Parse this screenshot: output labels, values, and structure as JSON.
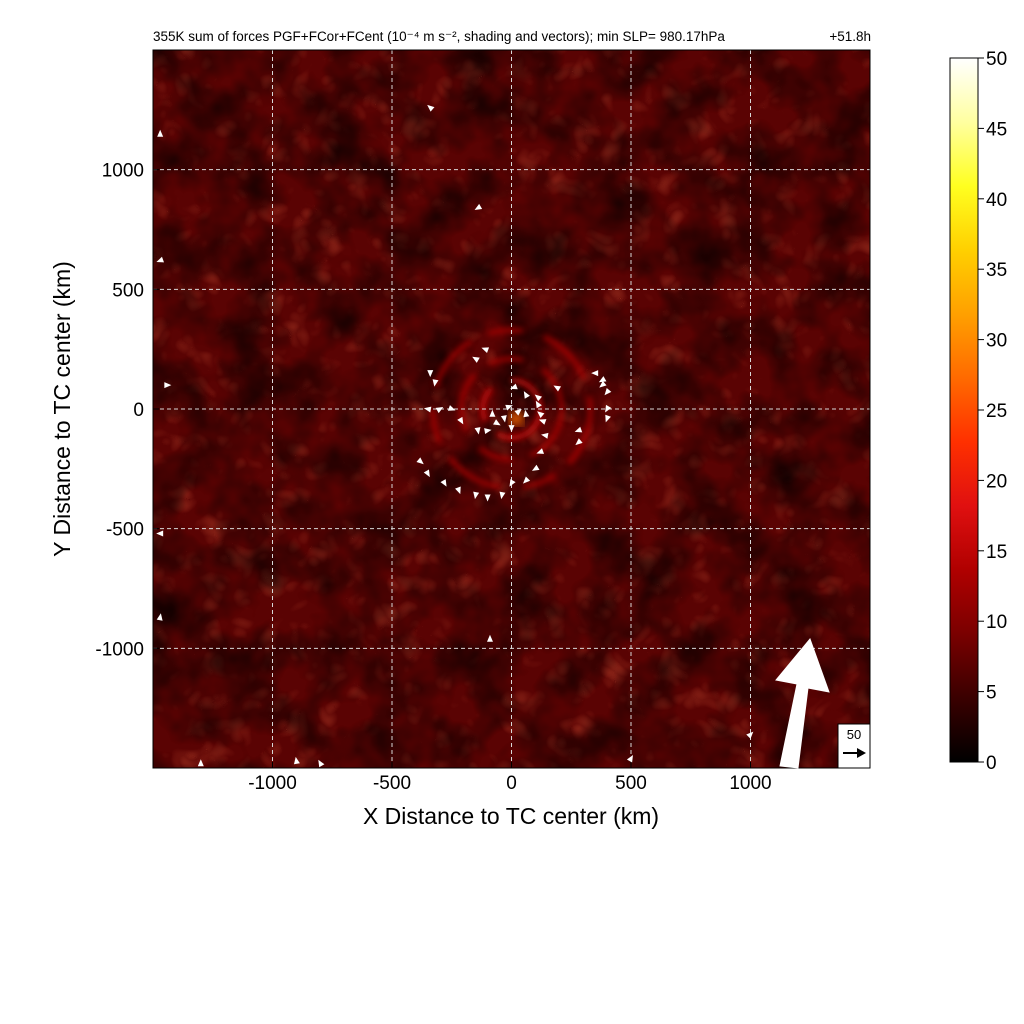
{
  "chart_data": {
    "type": "heatmap",
    "title": "355K sum of forces PGF+FCor+FCent (10⁻⁴ m s⁻², shading and vectors); min SLP= 980.17hPa",
    "time_label": "+51.8h",
    "xlabel": "X Distance to TC center (km)",
    "ylabel": "Y Distance to TC center (km)",
    "xlim": [
      -1500,
      1500
    ],
    "ylim": [
      -1500,
      1500
    ],
    "x_ticks": [
      -1000,
      -500,
      0,
      500,
      1000
    ],
    "y_ticks": [
      -1000,
      -500,
      0,
      500,
      1000
    ],
    "grid": true,
    "colorbar": {
      "range": [
        0,
        50
      ],
      "ticks": [
        0,
        5,
        10,
        15,
        20,
        25,
        30,
        35,
        40,
        45,
        50
      ],
      "colors": [
        "#000000",
        "#3a0000",
        "#7a0000",
        "#b00000",
        "#e01010",
        "#ff3000",
        "#ff6a00",
        "#ffa000",
        "#ffd000",
        "#ffff20",
        "#ffffa0",
        "#ffffff"
      ]
    },
    "reference_vector": {
      "label": "50",
      "magnitude": 50
    },
    "storm_motion_arrow": {
      "direction": "north-north-east"
    },
    "rings": [
      {
        "radius_km": 120,
        "intensity": 16
      },
      {
        "radius_km": 210,
        "intensity": 13
      },
      {
        "radius_km": 330,
        "intensity": 12
      }
    ],
    "hotspot": {
      "x": 20,
      "y": -40,
      "value": 26
    },
    "vectors": [
      [
        -340,
        150,
        -90
      ],
      [
        -320,
        110,
        -100
      ],
      [
        -350,
        0,
        170
      ],
      [
        -300,
        0,
        30
      ],
      [
        -250,
        0,
        -20
      ],
      [
        -210,
        -50,
        -60
      ],
      [
        -140,
        -90,
        -80
      ],
      [
        -100,
        -90,
        10
      ],
      [
        -60,
        -60,
        -30
      ],
      [
        -30,
        -40,
        -80
      ],
      [
        -80,
        -20,
        90
      ],
      [
        -10,
        10,
        20
      ],
      [
        0,
        -80,
        -90
      ],
      [
        30,
        -10,
        40
      ],
      [
        60,
        -20,
        100
      ],
      [
        110,
        20,
        120
      ],
      [
        120,
        -20,
        140
      ],
      [
        130,
        -50,
        160
      ],
      [
        140,
        -110,
        170
      ],
      [
        120,
        -180,
        200
      ],
      [
        100,
        -250,
        210
      ],
      [
        60,
        -300,
        225
      ],
      [
        0,
        -310,
        240
      ],
      [
        -40,
        -360,
        260
      ],
      [
        -100,
        -370,
        270
      ],
      [
        -150,
        -360,
        260
      ],
      [
        -220,
        -340,
        290
      ],
      [
        -280,
        -310,
        300
      ],
      [
        -350,
        -270,
        300
      ],
      [
        -380,
        -220,
        320
      ],
      [
        -110,
        250,
        160
      ],
      [
        -150,
        210,
        150
      ],
      [
        10,
        90,
        200
      ],
      [
        60,
        60,
        120
      ],
      [
        110,
        50,
        140
      ],
      [
        190,
        90,
        150
      ],
      [
        280,
        -90,
        200
      ],
      [
        280,
        -140,
        220
      ],
      [
        350,
        150,
        180
      ],
      [
        380,
        120,
        210
      ],
      [
        400,
        70,
        230
      ],
      [
        400,
        0,
        240
      ],
      [
        400,
        -40,
        250
      ],
      [
        380,
        100,
        220
      ],
      [
        -340,
        1260,
        140
      ],
      [
        -140,
        840,
        210
      ],
      [
        -90,
        -960,
        90
      ],
      [
        1000,
        -1360,
        45
      ],
      [
        500,
        -1460,
        60
      ],
      [
        -1440,
        100,
        0
      ],
      [
        -1470,
        1150,
        90
      ],
      [
        -1470,
        620,
        200
      ],
      [
        -1470,
        -520,
        180
      ],
      [
        -1470,
        -870,
        80
      ],
      [
        -1300,
        -1480,
        90
      ],
      [
        -900,
        -1470,
        100
      ],
      [
        -800,
        -1480,
        120
      ]
    ]
  }
}
